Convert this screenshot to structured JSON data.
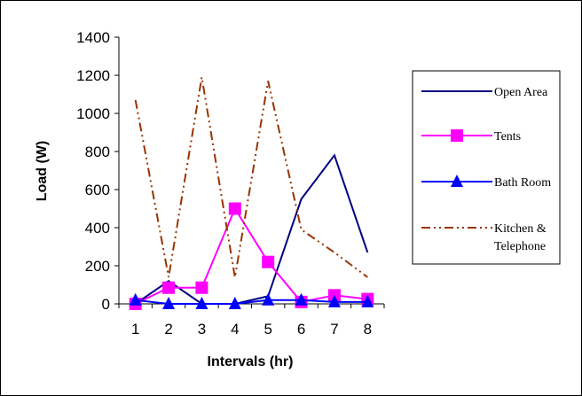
{
  "chart_data": {
    "type": "line",
    "xlabel": "Intervals (hr)",
    "ylabel": "Load (W)",
    "x": [
      1,
      2,
      3,
      4,
      5,
      6,
      7,
      8
    ],
    "xticks": [
      "1",
      "2",
      "3",
      "4",
      "5",
      "6",
      "7",
      "8"
    ],
    "ylim": [
      0,
      1400
    ],
    "yticks": [
      "0",
      "200",
      "400",
      "600",
      "800",
      "1000",
      "1200",
      "1400"
    ],
    "grid": false,
    "legend_position": "right",
    "series": [
      {
        "name": "Open Area",
        "values": [
          0,
          120,
          0,
          0,
          40,
          550,
          780,
          270
        ],
        "color": "#000080",
        "marker": "none",
        "style": "solid"
      },
      {
        "name": "Tents",
        "values": [
          0,
          85,
          85,
          500,
          220,
          10,
          45,
          25
        ],
        "color": "#ff00ff",
        "marker": "square",
        "style": "solid"
      },
      {
        "name": "Bath Room",
        "values": [
          20,
          0,
          0,
          0,
          20,
          20,
          10,
          10
        ],
        "color": "#0000ff",
        "marker": "triangle",
        "style": "solid"
      },
      {
        "name": "Kitchen & Telephone",
        "values": [
          1070,
          140,
          1190,
          140,
          1170,
          390,
          270,
          140
        ],
        "color": "#993300",
        "marker": "none",
        "style": "dashdotdot",
        "label_lines": [
          "Kitchen &",
          "Telephone"
        ]
      }
    ]
  }
}
